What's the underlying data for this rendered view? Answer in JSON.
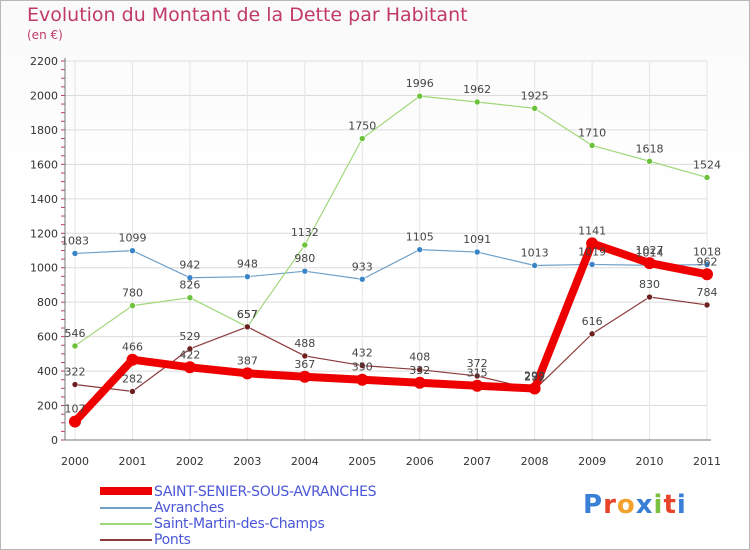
{
  "title": "Evolution du Montant de la Dette par Habitant",
  "subtitle": "(en €)",
  "logo": {
    "text": "Proxiti",
    "colors": [
      "#3a7fd6",
      "#e8442a",
      "#f2a22c",
      "#3a7fd6",
      "#7ac142",
      "#e8442a",
      "#3a7fd6"
    ]
  },
  "chart_data": {
    "type": "line",
    "x": [
      "2000",
      "2001",
      "2002",
      "2003",
      "2004",
      "2005",
      "2006",
      "2007",
      "2008",
      "2009",
      "2010",
      "2011"
    ],
    "ylim": [
      0,
      2200
    ],
    "yticks": [
      "0",
      "200",
      "400",
      "600",
      "800",
      "1000",
      "1200",
      "1400",
      "1600",
      "1800",
      "2000",
      "2200"
    ],
    "grid": true,
    "legend_position": "bottom-left",
    "series": [
      {
        "name": "SAINT-SENIER-SOUS-AVRANCHES",
        "color": "#ee0000",
        "marker": "#ee0000",
        "width": 8,
        "values": [
          107,
          466,
          422,
          387,
          367,
          350,
          332,
          315,
          299,
          1141,
          1027,
          962
        ],
        "labels": [
          "107",
          "466",
          "422",
          "387",
          "367",
          "350",
          "332",
          "315",
          "299",
          "1141",
          "1027",
          "962"
        ]
      },
      {
        "name": "Avranches",
        "color": "#6fa0c8",
        "marker": "#3a84c8",
        "width": 1.2,
        "values": [
          1083,
          1099,
          942,
          948,
          980,
          933,
          1105,
          1091,
          1013,
          1019,
          1014,
          1018
        ],
        "labels": [
          "1083",
          "1099",
          "942",
          "948",
          "980",
          "933",
          "1105",
          "1091",
          "1013",
          "1019",
          "1014",
          "1018"
        ]
      },
      {
        "name": "Saint-Martin-des-Champs",
        "color": "#9fd87a",
        "marker": "#6cc23a",
        "width": 1.2,
        "values": [
          546,
          780,
          826,
          657,
          1132,
          1750,
          1996,
          1962,
          1925,
          1710,
          1618,
          1524
        ],
        "labels": [
          "546",
          "780",
          "826",
          "657",
          "1132",
          "1750",
          "1996",
          "1962",
          "1925",
          "1710",
          "1618",
          "1524"
        ]
      },
      {
        "name": "Ponts",
        "color": "#8a3a3a",
        "marker": "#6e1f1f",
        "width": 1.2,
        "values": [
          322,
          282,
          529,
          657,
          488,
          432,
          408,
          372,
          292,
          616,
          830,
          784
        ],
        "labels": [
          "322",
          "282",
          "529",
          "657",
          "488",
          "432",
          "408",
          "372",
          "292",
          "616",
          "830",
          "784"
        ]
      }
    ]
  }
}
